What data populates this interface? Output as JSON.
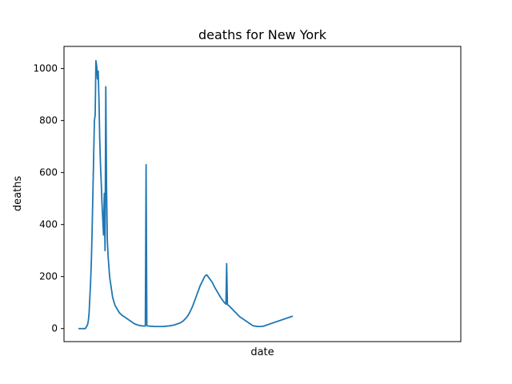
{
  "chart_data": {
    "type": "line",
    "title": "deaths for New York",
    "xlabel": "date",
    "ylabel": "deaths",
    "ylim": [
      -50,
      1085
    ],
    "xlim": [
      -19,
      503
    ],
    "yticks": [
      0,
      200,
      400,
      600,
      800,
      1000
    ],
    "xticks_shown": false,
    "grid": false,
    "color": "#1f77b4",
    "series": [
      {
        "values": [
          0,
          0,
          0,
          0,
          0,
          0,
          0,
          0,
          0,
          0,
          5,
          10,
          15,
          30,
          60,
          120,
          180,
          260,
          380,
          520,
          660,
          800,
          820,
          1030,
          1010,
          960,
          990,
          880,
          730,
          630,
          560,
          480,
          420,
          360,
          520,
          300,
          930,
          540,
          340,
          280,
          240,
          200,
          180,
          160,
          140,
          120,
          110,
          100,
          90,
          85,
          80,
          75,
          70,
          65,
          60,
          58,
          55,
          52,
          50,
          48,
          46,
          44,
          42,
          40,
          38,
          36,
          34,
          32,
          30,
          28,
          26,
          24,
          22,
          20,
          18,
          17,
          16,
          15,
          14,
          13,
          12,
          12,
          11,
          11,
          10,
          10,
          10,
          10,
          10,
          630,
          12,
          10,
          10,
          10,
          9,
          9,
          9,
          9,
          9,
          8,
          8,
          8,
          8,
          8,
          8,
          8,
          8,
          8,
          8,
          8,
          8,
          8,
          8,
          8,
          9,
          9,
          9,
          10,
          10,
          10,
          11,
          11,
          12,
          12,
          13,
          13,
          14,
          15,
          16,
          17,
          18,
          19,
          20,
          21,
          22,
          24,
          26,
          28,
          30,
          33,
          36,
          39,
          42,
          46,
          50,
          55,
          60,
          66,
          72,
          78,
          85,
          92,
          100,
          108,
          116,
          124,
          132,
          140,
          148,
          156,
          164,
          170,
          176,
          182,
          188,
          194,
          200,
          204,
          205,
          206,
          202,
          198,
          194,
          190,
          186,
          182,
          178,
          172,
          166,
          160,
          155,
          150,
          145,
          140,
          135,
          130,
          125,
          120,
          116,
          112,
          108,
          104,
          100,
          97,
          94,
          250,
          92,
          90,
          88,
          85,
          82,
          79,
          76,
          73,
          70,
          67,
          64,
          61,
          58,
          55,
          52,
          49,
          46,
          44,
          42,
          40,
          38,
          36,
          34,
          32,
          30,
          28,
          26,
          24,
          22,
          20,
          18,
          16,
          14,
          12,
          11,
          10,
          10,
          9,
          9,
          8,
          8,
          8,
          8,
          8,
          8,
          8,
          9,
          9,
          10,
          11,
          12,
          13,
          14,
          15,
          16,
          17,
          18,
          19,
          20,
          21,
          22,
          23,
          24,
          25,
          26,
          27,
          28,
          29,
          30,
          31,
          32,
          33,
          34,
          35,
          36,
          37,
          38,
          39,
          40,
          41,
          42,
          43,
          44,
          45,
          46,
          47,
          48
        ]
      }
    ]
  }
}
